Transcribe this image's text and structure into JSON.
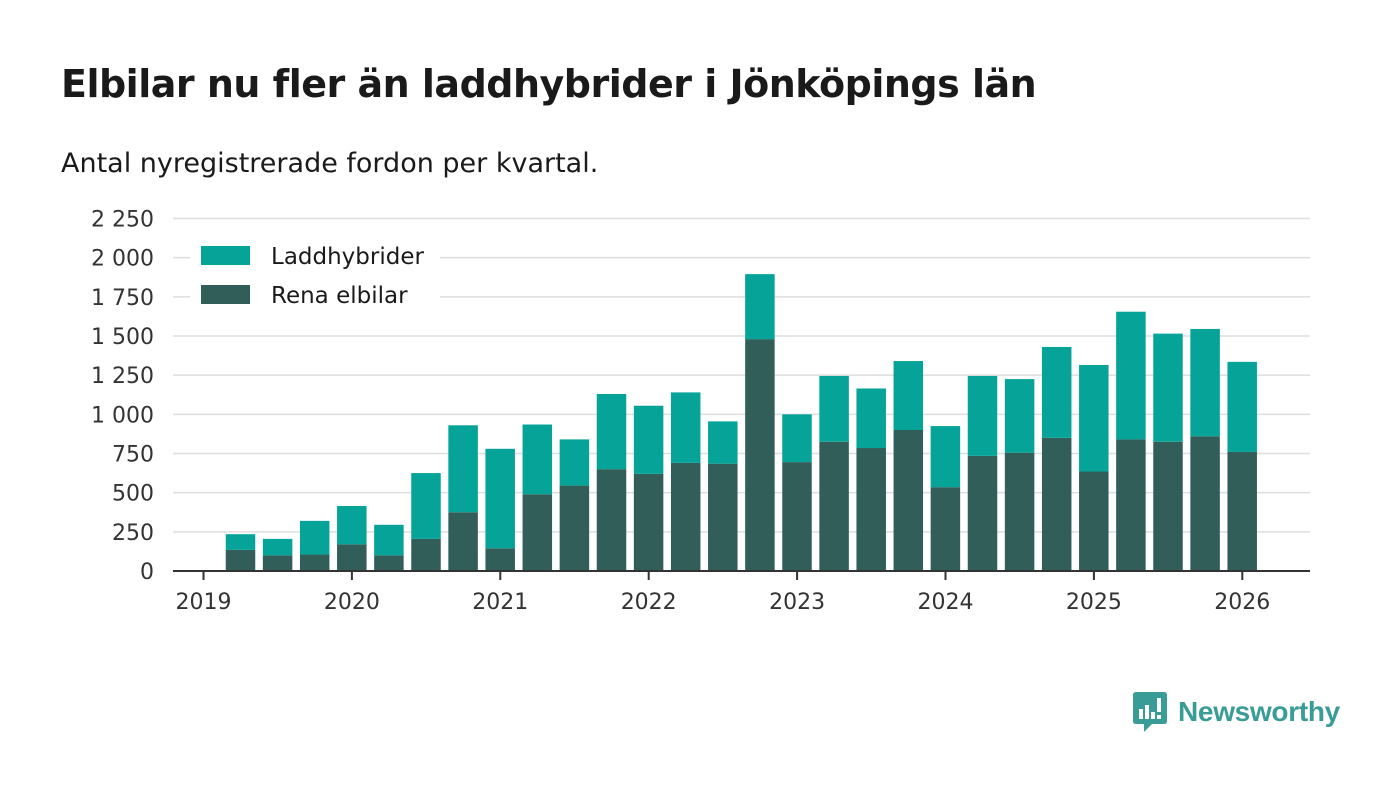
{
  "chart_data": {
    "type": "bar",
    "stacked": true,
    "title": "Elbilar nu fler än laddhybrider i Jönköpings län",
    "subtitle": "Antal nyregistrerade fordon per kvartal.",
    "xlabel": "",
    "ylabel": "",
    "ylim": [
      0,
      2250
    ],
    "y_ticks": [
      0,
      250,
      500,
      750,
      1000,
      1250,
      1500,
      1750,
      2000,
      2250
    ],
    "y_tick_labels": [
      "0",
      "250",
      "500",
      "750",
      "1 000",
      "1 250",
      "1 500",
      "1 750",
      "2 000",
      "2 250"
    ],
    "x_tick_labels": [
      "2019",
      "2020",
      "2021",
      "2022",
      "2023",
      "2024",
      "2025",
      "2026"
    ],
    "categories": [
      "2019 Q2",
      "2019 Q3",
      "2019 Q4",
      "2020 Q1",
      "2020 Q2",
      "2020 Q3",
      "2020 Q4",
      "2021 Q1",
      "2021 Q2",
      "2021 Q3",
      "2021 Q4",
      "2022 Q1",
      "2022 Q2",
      "2022 Q3",
      "2022 Q4",
      "2023 Q1",
      "2023 Q2",
      "2023 Q3",
      "2023 Q4",
      "2024 Q1",
      "2024 Q2",
      "2024 Q3",
      "2024 Q4",
      "2025 Q1",
      "2025 Q2",
      "2025 Q3",
      "2025 Q4",
      "2026 Q1"
    ],
    "series": [
      {
        "name": "Rena elbilar",
        "color": "#325e5a",
        "values": [
          135,
          100,
          105,
          170,
          100,
          205,
          375,
          145,
          490,
          545,
          650,
          620,
          690,
          685,
          1480,
          695,
          825,
          785,
          900,
          535,
          735,
          755,
          850,
          635,
          840,
          825,
          860,
          760
        ]
      },
      {
        "name": "Laddhybrider",
        "color": "#05a398",
        "values": [
          100,
          105,
          215,
          245,
          195,
          420,
          555,
          635,
          445,
          295,
          480,
          435,
          450,
          270,
          415,
          305,
          420,
          380,
          440,
          390,
          510,
          470,
          580,
          680,
          815,
          690,
          685,
          575
        ]
      }
    ],
    "legend": [
      "Laddhybrider",
      "Rena elbilar"
    ],
    "legend_position": "top-left",
    "grid": true
  },
  "brand": {
    "name": "Newsworthy",
    "icon": "newsworthy-logo-icon",
    "color": "#3a9c96"
  },
  "colors": {
    "grid": "#dedede",
    "axis": "#333333"
  }
}
